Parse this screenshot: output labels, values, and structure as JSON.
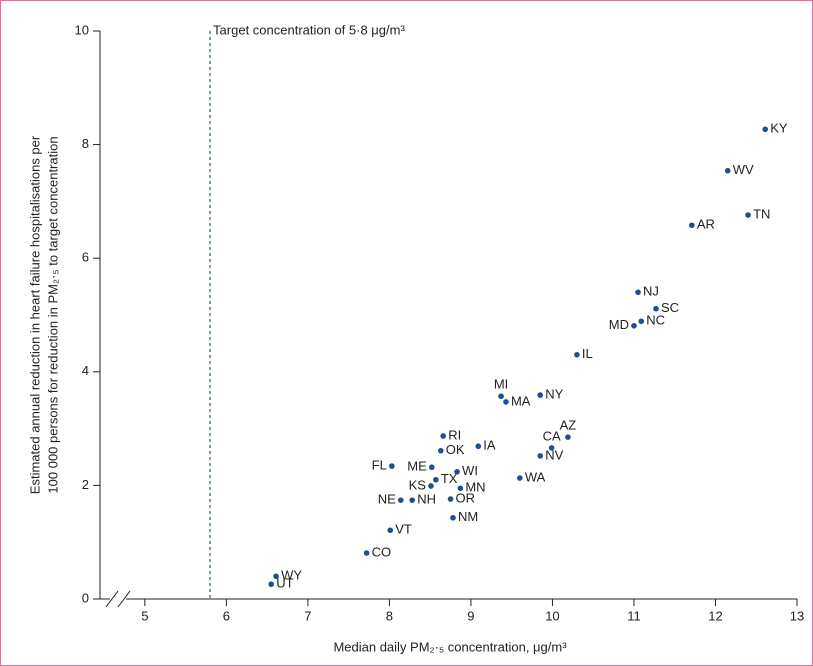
{
  "chart_data": {
    "type": "scatter",
    "xlabel": "Median daily PM₂·₅ concentration, μg/m³",
    "ylabel": [
      "Estimated annual reduction in heart failure hospitalisations per",
      "100 000 persons for reduction in PM₂·₅ to target concentration"
    ],
    "color": "#1d4f91",
    "xlim": [
      4.45,
      13
    ],
    "ylim": [
      0,
      10
    ],
    "xticks": [
      5,
      6,
      7,
      8,
      9,
      10,
      11,
      12,
      13
    ],
    "yticks": [
      0,
      2,
      4,
      6,
      8,
      10
    ],
    "target_line": {
      "x": 5.8,
      "label": "Target concentration of 5·8 μg/m³",
      "color": "#4a7f9a"
    },
    "point_labels": [
      "KY",
      "WV",
      "TN",
      "AR",
      "NJ",
      "SC",
      "MD",
      "NC",
      "IL",
      "MI",
      "MA",
      "NY",
      "RI",
      "IA",
      "OK",
      "AZ",
      "CA",
      "NV",
      "FL",
      "ME",
      "WI",
      "WA",
      "KS",
      "TX",
      "MN",
      "NE",
      "NH",
      "OR",
      "NM",
      "VT",
      "CO",
      "WY",
      "UT"
    ],
    "label_positions": [
      "right",
      "right",
      "right",
      "right",
      "right",
      "right",
      "left",
      "right",
      "right",
      "above",
      "right",
      "right",
      "right",
      "right",
      "right",
      "above",
      "above",
      "right",
      "left",
      "left",
      "right",
      "right",
      "left",
      "right",
      "right",
      "left",
      "right",
      "right",
      "right",
      "right",
      "right",
      "right",
      "right"
    ],
    "x": [
      12.61,
      12.15,
      12.4,
      11.71,
      11.05,
      11.27,
      11.0,
      11.09,
      10.3,
      9.37,
      9.43,
      9.85,
      8.66,
      9.09,
      8.63,
      10.19,
      9.99,
      9.85,
      8.03,
      8.52,
      8.83,
      9.6,
      8.51,
      8.57,
      8.87,
      8.14,
      8.28,
      8.75,
      8.78,
      8.01,
      7.72,
      6.61,
      6.55
    ],
    "values": [
      8.27,
      7.54,
      6.76,
      6.58,
      5.4,
      5.11,
      4.81,
      4.89,
      4.3,
      3.57,
      3.47,
      3.59,
      2.87,
      2.69,
      2.61,
      2.85,
      2.66,
      2.52,
      2.34,
      2.32,
      2.24,
      2.13,
      1.99,
      2.1,
      1.95,
      1.74,
      1.74,
      1.76,
      1.43,
      1.21,
      0.81,
      0.4,
      0.26
    ]
  }
}
